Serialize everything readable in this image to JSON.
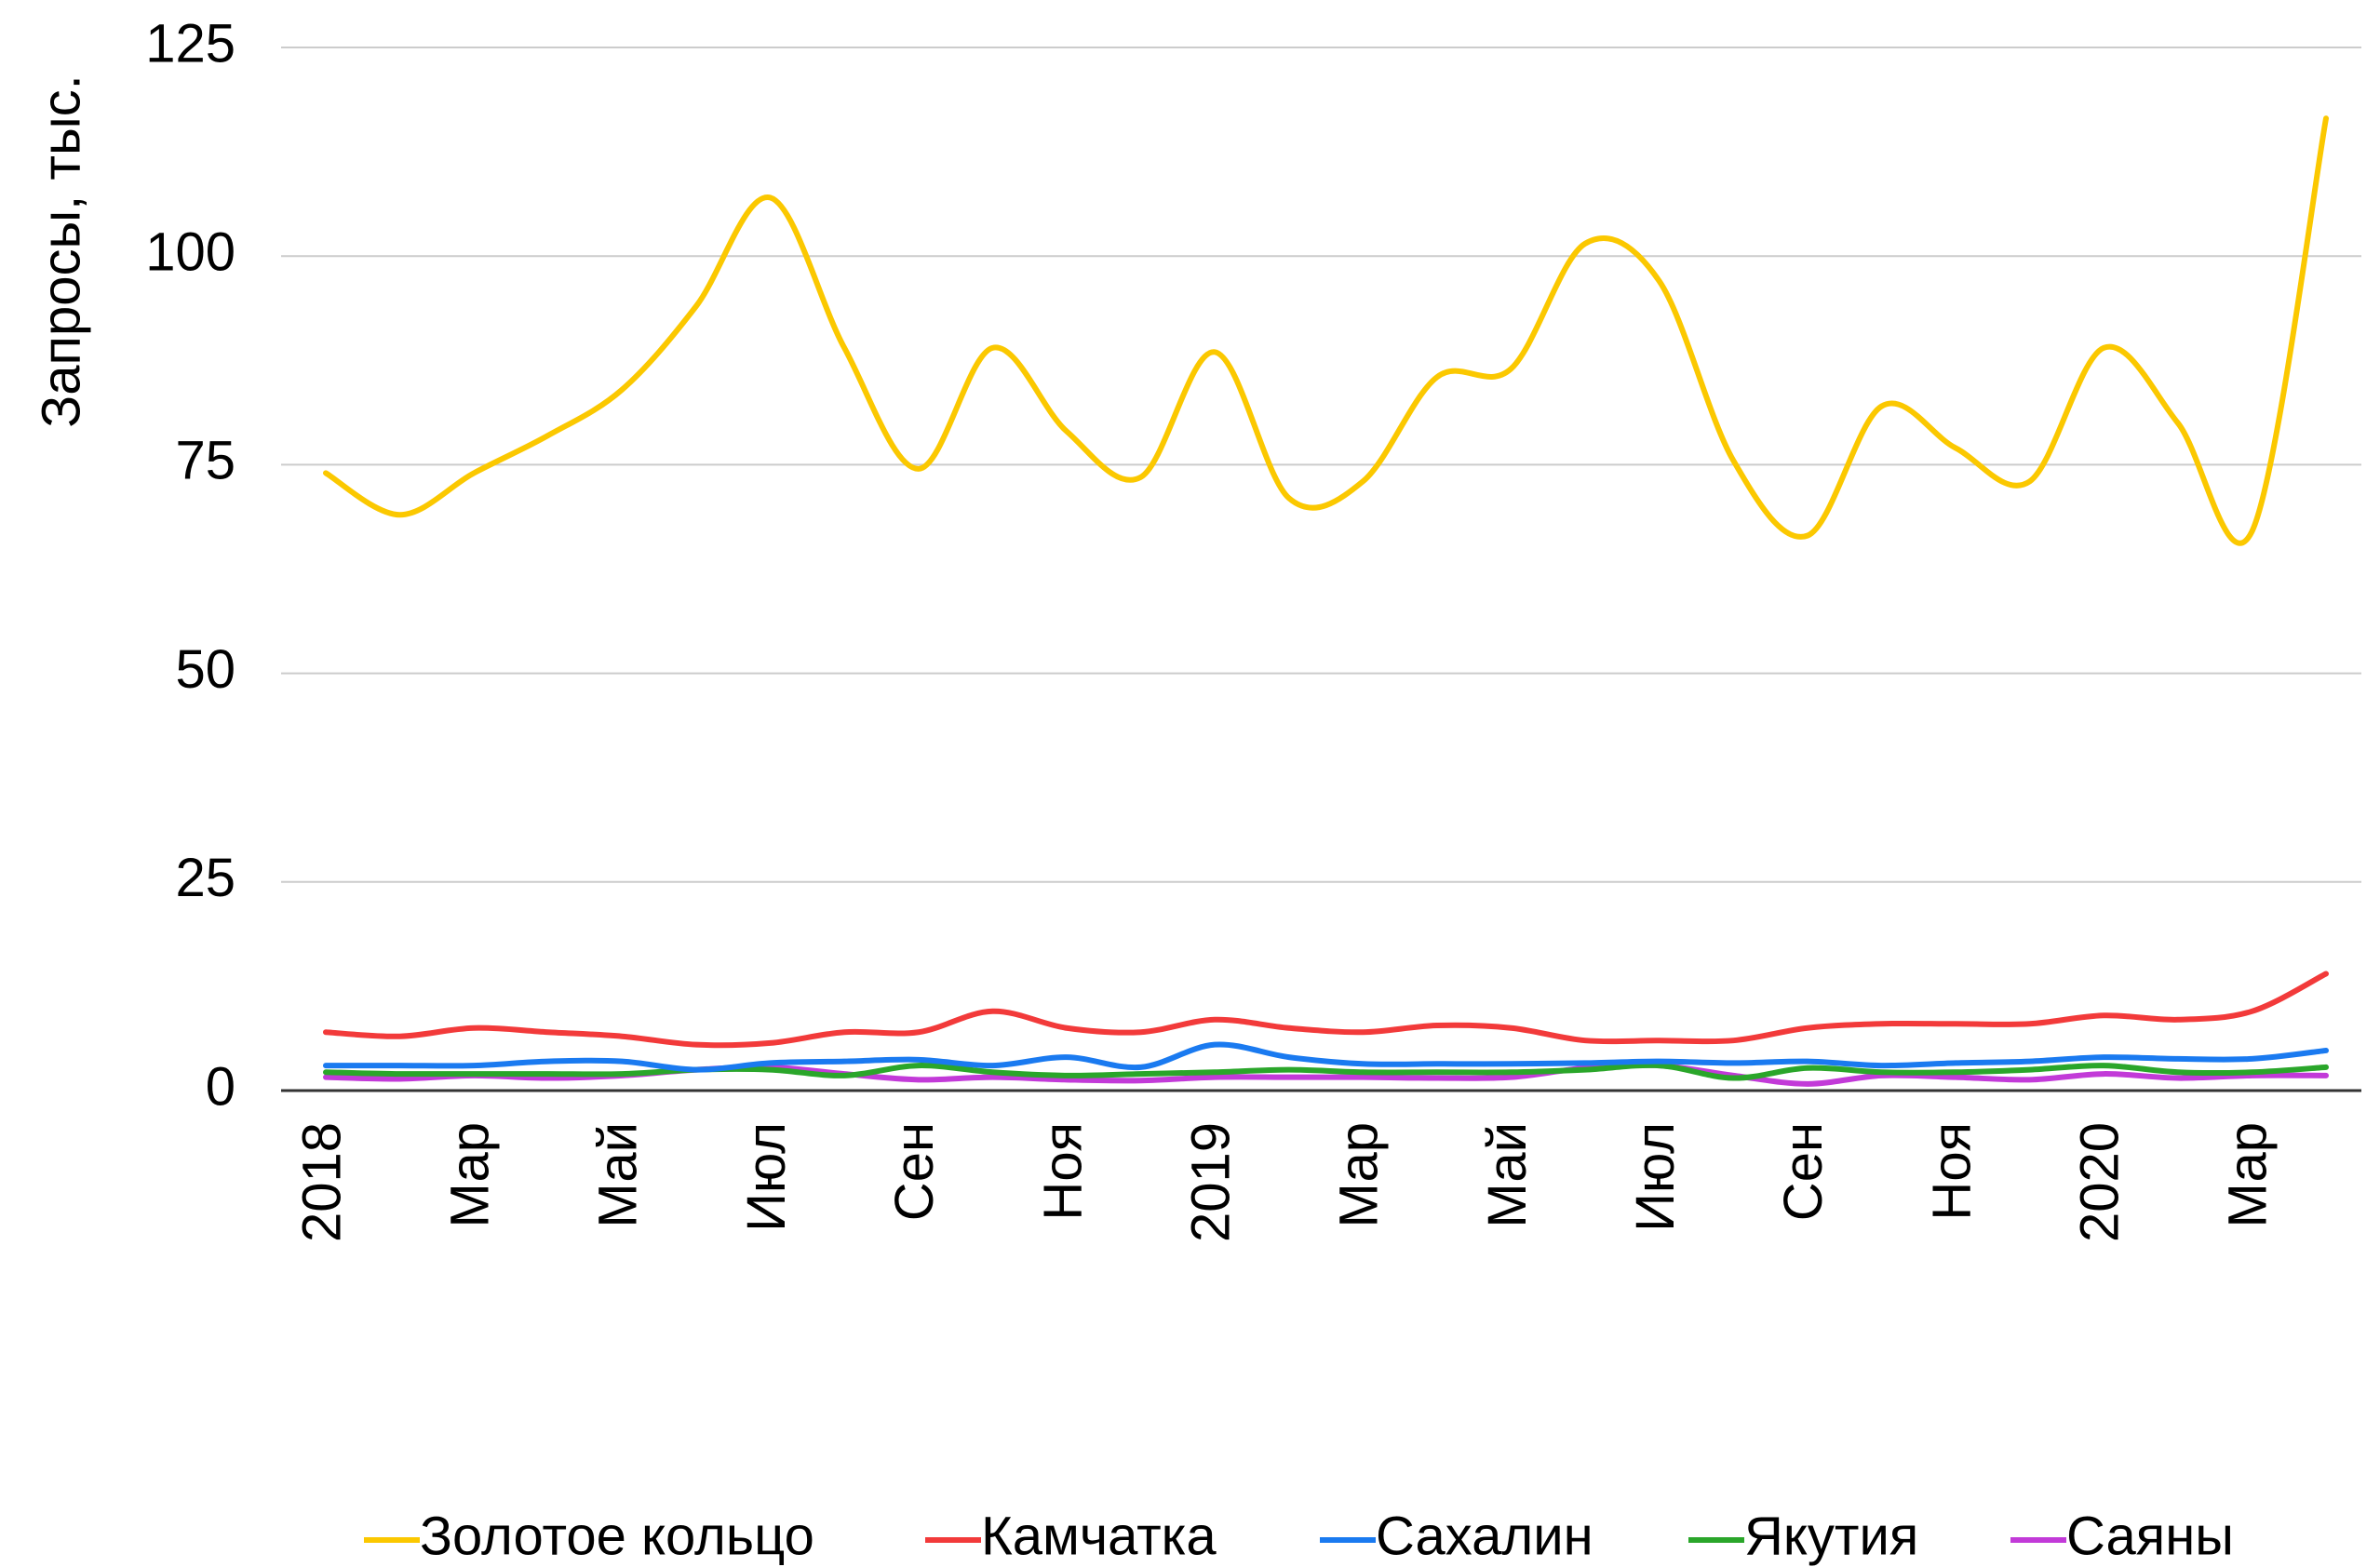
{
  "chart_data": {
    "type": "line",
    "y_label": "Запросы, тыс.",
    "categories": [
      "2018",
      null,
      "Мар",
      null,
      "Май",
      null,
      "Июл",
      null,
      "Сен",
      null,
      "Ноя",
      null,
      "2019",
      null,
      "Мар",
      null,
      "Май",
      null,
      "Июл",
      null,
      "Сен",
      null,
      "Ноя",
      null,
      "2020",
      null,
      "Мар",
      null
    ],
    "series": [
      {
        "name": "Золотое кольцо",
        "color": "#fbc800",
        "values": [
          74,
          69,
          74,
          78.5,
          84,
          94,
          107,
          89,
          74.5,
          89,
          79,
          73.5,
          88.5,
          71,
          73,
          85.5,
          86.5,
          101.5,
          97,
          75.5,
          66.5,
          82,
          77,
          73,
          89,
          80,
          67,
          116.5
        ]
      },
      {
        "name": "Камчатка",
        "color": "#f23a3a",
        "values": [
          7,
          6.5,
          7.5,
          7,
          6.5,
          5.5,
          5.7,
          7,
          7,
          9.5,
          7.5,
          7,
          8.5,
          7.5,
          7,
          7.8,
          7.5,
          6,
          6,
          6,
          7.5,
          8,
          8,
          8,
          9,
          8.5,
          9.5,
          14
        ]
      },
      {
        "name": "Сахалин",
        "color": "#1a7af0",
        "values": [
          3,
          3,
          3,
          3.5,
          3.5,
          2.5,
          3.3,
          3.5,
          3.7,
          3,
          4,
          2.8,
          5.5,
          4,
          3.2,
          3.2,
          3.2,
          3.3,
          3.5,
          3.3,
          3.5,
          3,
          3.3,
          3.5,
          4,
          3.8,
          3.8,
          4.8
        ]
      },
      {
        "name": "Якутия",
        "color": "#2aa62a",
        "values": [
          2.2,
          2,
          2,
          2,
          2,
          2.5,
          2.5,
          1.8,
          3,
          2.2,
          1.8,
          2,
          2.2,
          2.5,
          2.2,
          2.2,
          2.2,
          2.5,
          3,
          1.5,
          2.7,
          2.2,
          2.2,
          2.5,
          3,
          2.2,
          2.2,
          2.8
        ]
      },
      {
        "name": "Саяны",
        "color": "#c23ad8",
        "values": [
          1.6,
          1.4,
          1.8,
          1.5,
          1.8,
          2.5,
          2.8,
          2,
          1.3,
          1.6,
          1.3,
          1.2,
          1.6,
          1.6,
          1.6,
          1.5,
          1.6,
          2.7,
          3,
          1.8,
          0.8,
          1.8,
          1.6,
          1.3,
          2,
          1.5,
          1.8,
          1.8
        ]
      }
    ],
    "ylim": [
      0,
      125
    ],
    "yticks": [
      0,
      25,
      50,
      75,
      100,
      125
    ],
    "grid": true,
    "legend": "bottom"
  }
}
